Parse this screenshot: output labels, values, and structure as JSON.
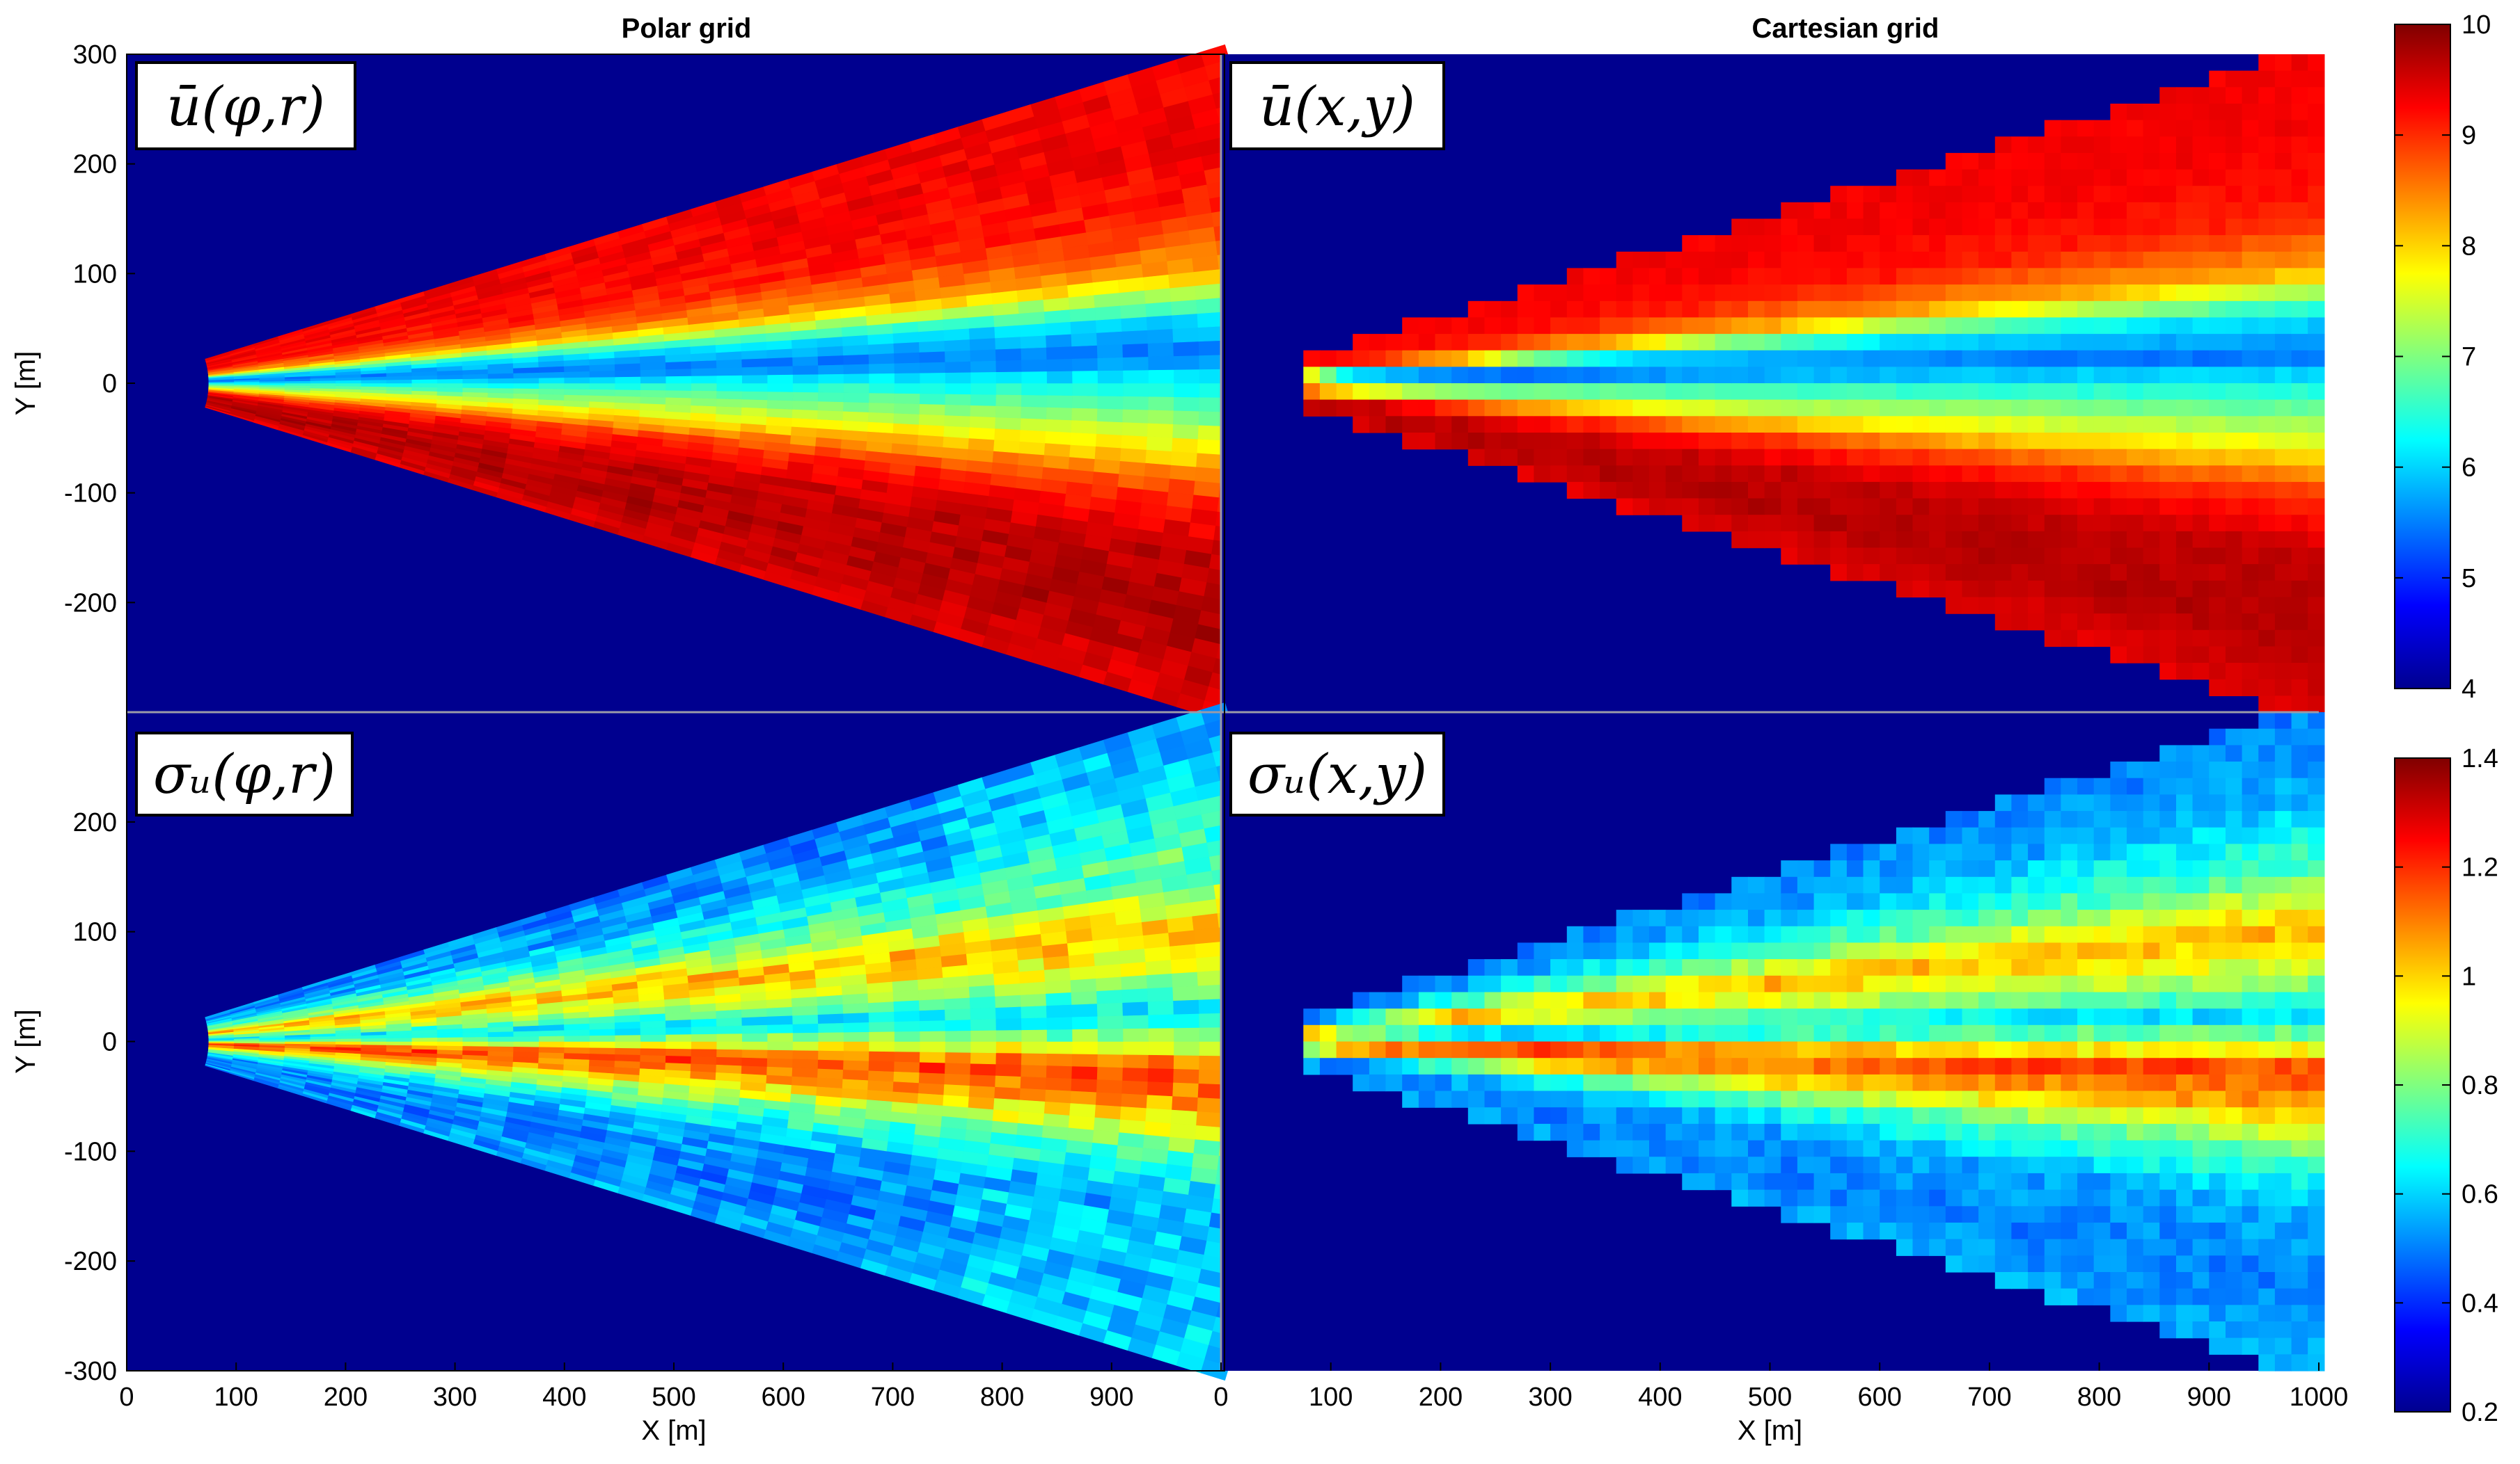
{
  "column_titles": {
    "left": "Polar grid",
    "right": "Cartesian grid"
  },
  "panel_labels": {
    "top_left": "ū(φ,r)",
    "top_right": "ū(x,y)",
    "bottom_left": "σᵤ(φ,r)",
    "bottom_right": "σᵤ(x,y)"
  },
  "colors": {
    "background": "#00008F",
    "jet_stops": [
      "#00008F",
      "#0000FF",
      "#00FFFF",
      "#FFFF00",
      "#FF0000",
      "#800000"
    ]
  },
  "chart_data": [
    {
      "id": "ubar-polar",
      "type": "heatmap",
      "grid": "polar",
      "title": "Polar grid",
      "xlabel": "",
      "ylabel": "Y [m]",
      "xlim": [
        0,
        1000
      ],
      "ylim": [
        -300,
        300
      ],
      "yticks": [
        300,
        200,
        100,
        0,
        -100,
        -200
      ],
      "field": "mean_wind_speed",
      "colorbar": "ubar",
      "apex_x": 75,
      "half_angle_deg": 17.1,
      "sector_profile": {
        "angle_deg": [
          -17,
          -13,
          -9,
          -6,
          -3.5,
          -1.5,
          0,
          1.5,
          3.5,
          6,
          9,
          13,
          17
        ],
        "value": [
          9.4,
          9.7,
          9.6,
          9.0,
          7.8,
          6.9,
          6.3,
          5.4,
          6.1,
          8.3,
          9.1,
          9.3,
          9.3
        ]
      }
    },
    {
      "id": "ubar-cartesian",
      "type": "heatmap",
      "grid": "cartesian",
      "title": "Cartesian grid",
      "xlabel": "",
      "ylabel": "",
      "xlim": [
        0,
        1000
      ],
      "ylim": [
        -300,
        300
      ],
      "field": "mean_wind_speed",
      "colorbar": "ubar",
      "apex_x": 75,
      "half_angle_deg": 17.1,
      "sector_profile": {
        "angle_deg": [
          -17,
          -13,
          -9,
          -6,
          -3.5,
          -1.5,
          0,
          1.5,
          3.5,
          6,
          9,
          13,
          17
        ],
        "value": [
          9.4,
          9.7,
          9.6,
          9.0,
          7.8,
          6.9,
          6.3,
          5.4,
          6.1,
          8.3,
          9.1,
          9.3,
          9.3
        ]
      }
    },
    {
      "id": "sigma-polar",
      "type": "heatmap",
      "grid": "polar",
      "title": "",
      "xlabel": "X [m]",
      "ylabel": "Y [m]",
      "xlim": [
        0,
        1000
      ],
      "ylim": [
        -300,
        300
      ],
      "xticks": [
        0,
        100,
        200,
        300,
        400,
        500,
        600,
        700,
        800,
        900
      ],
      "yticks": [
        200,
        100,
        0,
        -100,
        -200,
        -300
      ],
      "field": "std_wind_speed",
      "colorbar": "sigma",
      "apex_x": 75,
      "half_angle_deg": 17.1,
      "sector_profile": {
        "angle_deg": [
          -17,
          -13,
          -9,
          -6,
          -3.5,
          -1.5,
          0,
          1.5,
          3.5,
          6,
          9,
          13,
          17
        ],
        "value": [
          0.55,
          0.5,
          0.55,
          0.75,
          1.05,
          1.18,
          0.85,
          0.6,
          0.85,
          1.05,
          0.75,
          0.55,
          0.5
        ]
      }
    },
    {
      "id": "sigma-cartesian",
      "type": "heatmap",
      "grid": "cartesian",
      "title": "",
      "xlabel": "X [m]",
      "ylabel": "",
      "xlim": [
        0,
        1000
      ],
      "ylim": [
        -300,
        300
      ],
      "xticks": [
        0,
        100,
        200,
        300,
        400,
        500,
        600,
        700,
        800,
        900,
        1000
      ],
      "field": "std_wind_speed",
      "colorbar": "sigma",
      "apex_x": 75,
      "half_angle_deg": 17.1,
      "sector_profile": {
        "angle_deg": [
          -17,
          -13,
          -9,
          -6,
          -3.5,
          -1.5,
          0,
          1.5,
          3.5,
          6,
          9,
          13,
          17
        ],
        "value": [
          0.55,
          0.5,
          0.55,
          0.75,
          1.05,
          1.18,
          0.85,
          0.6,
          0.85,
          1.05,
          0.75,
          0.55,
          0.5
        ]
      }
    }
  ],
  "colorbars": {
    "ubar": {
      "range": [
        4,
        10
      ],
      "ticks": [
        "10",
        "9",
        "8",
        "7",
        "6",
        "5",
        "4"
      ]
    },
    "sigma": {
      "range": [
        0.2,
        1.4
      ],
      "ticks": [
        "1.4",
        "1.2",
        "1",
        "0.8",
        "0.6",
        "0.4",
        "0.2"
      ]
    }
  }
}
